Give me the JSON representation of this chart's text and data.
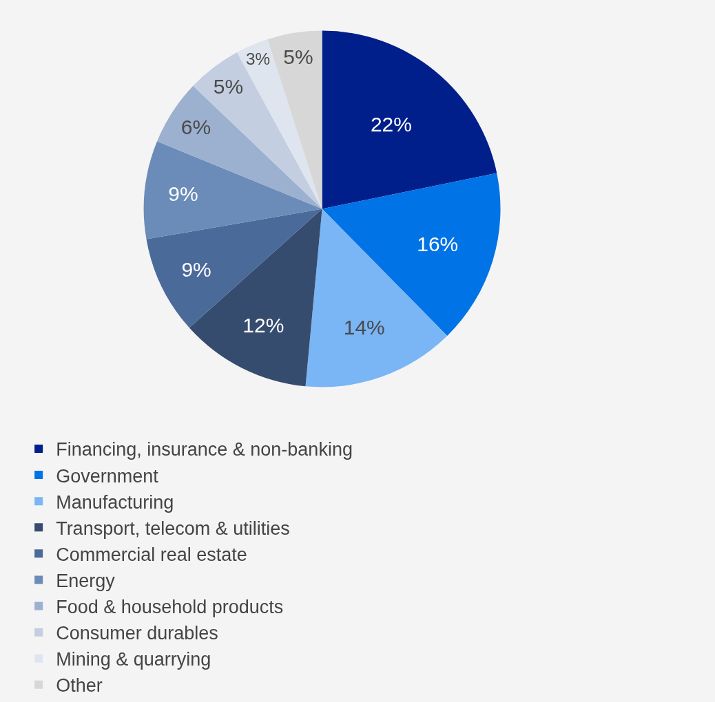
{
  "chart_data": {
    "type": "pie",
    "categories": [
      "Financing, insurance & non-banking",
      "Government",
      "Manufacturing",
      "Transport, telecom & utilities",
      "Commercial real estate",
      "Energy",
      "Food & household products",
      "Consumer durables",
      "Mining & quarrying",
      "Other"
    ],
    "values": [
      22,
      16,
      14,
      12,
      9,
      9,
      6,
      5,
      3,
      5
    ],
    "value_labels": [
      "22%",
      "16%",
      "14%",
      "12%",
      "9%",
      "9%",
      "6%",
      "5%",
      "3%",
      "5%"
    ],
    "colors": [
      "#001f8b",
      "#0073e6",
      "#7ab5f5",
      "#364c6e",
      "#4a6a9a",
      "#6b8bb8",
      "#9cb0cf",
      "#c3cee0",
      "#dfe5ef",
      "#d7d7d7"
    ],
    "legend": "bottom"
  }
}
